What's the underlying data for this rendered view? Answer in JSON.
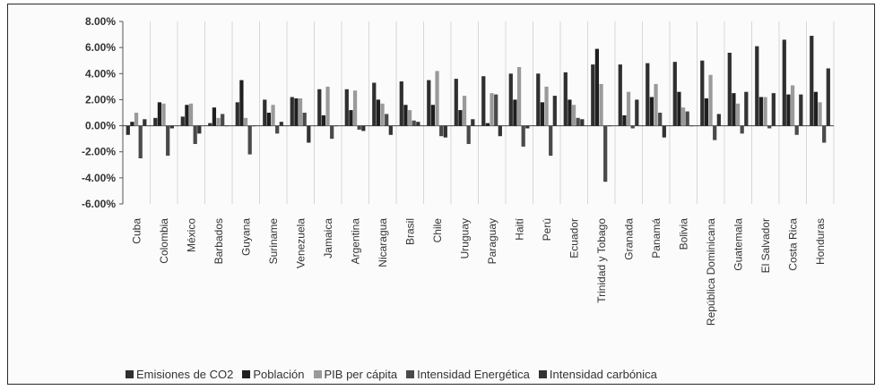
{
  "chart_data": {
    "type": "bar",
    "title": "",
    "xlabel": "",
    "ylabel": "",
    "ylim": [
      -6,
      8
    ],
    "grid": "vertical lines between categories",
    "legend_position": "bottom",
    "y_ticks": [
      "8.00%",
      "6.00%",
      "4.00%",
      "2.00%",
      "0.00%",
      "-2.00%",
      "-4.00%",
      "-6.00%"
    ],
    "categories": [
      "Cuba",
      "Colombia",
      "México",
      "Barbados",
      "Guyana",
      "Suriname",
      "Venezuela",
      "Jamaica",
      "Argentina",
      "Nicaragua",
      "Brasil",
      "Chile",
      "Uruguay",
      "Paraguay",
      "Haití",
      "Perú",
      "Ecuador",
      "Trinidad y Tobago",
      "Granada",
      "Panamá",
      "Bolivia",
      "República Dominicana",
      "Guatemala",
      "El Salvador",
      "Costa Rica",
      "Honduras"
    ],
    "series": [
      {
        "name": "Emisiones de CO2",
        "color": "#2f2f2f",
        "values": [
          -0.7,
          0.6,
          0.7,
          0.2,
          1.8,
          2.0,
          2.2,
          2.8,
          2.8,
          3.3,
          3.4,
          3.5,
          3.6,
          3.8,
          4.0,
          4.0,
          4.1,
          4.7,
          4.7,
          4.8,
          4.9,
          5.0,
          5.6,
          6.1,
          6.6,
          6.9
        ]
      },
      {
        "name": "Población",
        "color": "#1f1f1f",
        "values": [
          0.3,
          1.8,
          1.6,
          1.4,
          3.5,
          1.0,
          2.1,
          0.8,
          1.2,
          2.0,
          1.6,
          1.6,
          1.2,
          0.2,
          2.0,
          1.8,
          2.0,
          5.9,
          0.8,
          2.2,
          2.6,
          2.1,
          2.5,
          2.2,
          2.4,
          2.6
        ]
      },
      {
        "name": "PIB per cápita",
        "color": "#9a9a9a",
        "values": [
          1.0,
          1.7,
          1.7,
          0.6,
          0.6,
          1.6,
          2.1,
          3.0,
          2.7,
          1.7,
          1.2,
          4.2,
          2.3,
          2.5,
          4.5,
          3.0,
          1.6,
          3.2,
          2.6,
          3.2,
          1.4,
          3.9,
          1.7,
          2.2,
          3.1,
          1.8
        ]
      },
      {
        "name": "Intensidad Energética",
        "color": "#4a4a4a",
        "values": [
          -2.5,
          -2.3,
          -1.4,
          0.9,
          -2.2,
          -0.6,
          1.0,
          -1.0,
          -0.3,
          0.9,
          0.4,
          -0.8,
          -1.4,
          2.4,
          -1.6,
          -2.3,
          0.6,
          -4.3,
          -0.2,
          1.0,
          1.1,
          -1.1,
          -0.6,
          -0.2,
          -0.7,
          -1.3
        ]
      },
      {
        "name": "Intensidad carbónica",
        "color": "#333333",
        "values": [
          0.5,
          -0.2,
          -0.6,
          0.0,
          0.0,
          0.3,
          -1.3,
          0.0,
          -0.4,
          -0.7,
          0.3,
          -0.9,
          0.5,
          -0.8,
          -0.2,
          2.3,
          0.5,
          0.0,
          2.0,
          -0.9,
          0.0,
          0.9,
          2.6,
          2.5,
          2.4,
          4.4
        ]
      }
    ]
  }
}
